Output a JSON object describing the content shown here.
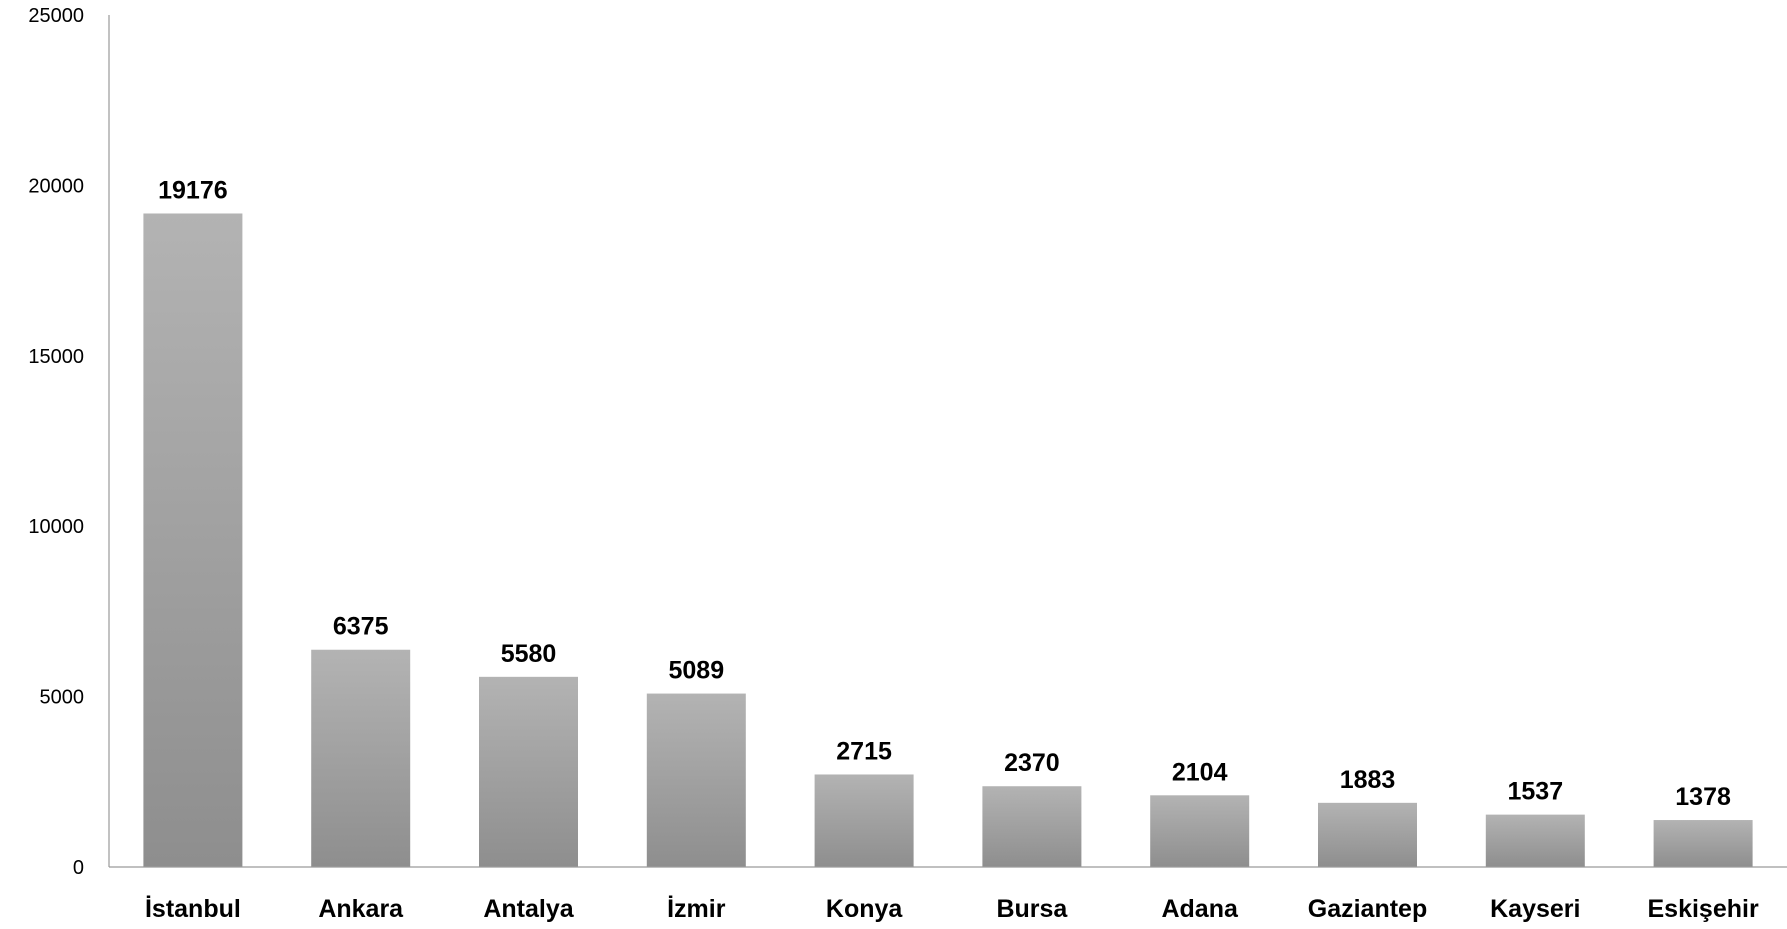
{
  "chart_data": {
    "type": "bar",
    "title": "",
    "xlabel": "",
    "ylabel": "",
    "categories": [
      "İstanbul",
      "Ankara",
      "Antalya",
      "İzmir",
      "Konya",
      "Bursa",
      "Adana",
      "Gaziantep",
      "Kayseri",
      "Eskişehir"
    ],
    "values": [
      19176,
      6375,
      5580,
      5089,
      2715,
      2370,
      2104,
      1883,
      1537,
      1378
    ],
    "data_labels": [
      "19176",
      "6375",
      "5580",
      "5089",
      "2715",
      "2370",
      "2104",
      "1883",
      "1537",
      "1378"
    ],
    "ylim": [
      0,
      25000
    ],
    "yticks": [
      0,
      5000,
      10000,
      15000,
      20000,
      25000
    ],
    "ytick_labels": [
      "0",
      "5000",
      "10000",
      "15000",
      "20000",
      "25000"
    ],
    "grid": false,
    "legend": "none",
    "colors": {
      "bar_top": "#b3b3b3",
      "bar_bottom": "#8e8e8e",
      "axis": "#9a9a9a",
      "text": "#000000"
    }
  }
}
